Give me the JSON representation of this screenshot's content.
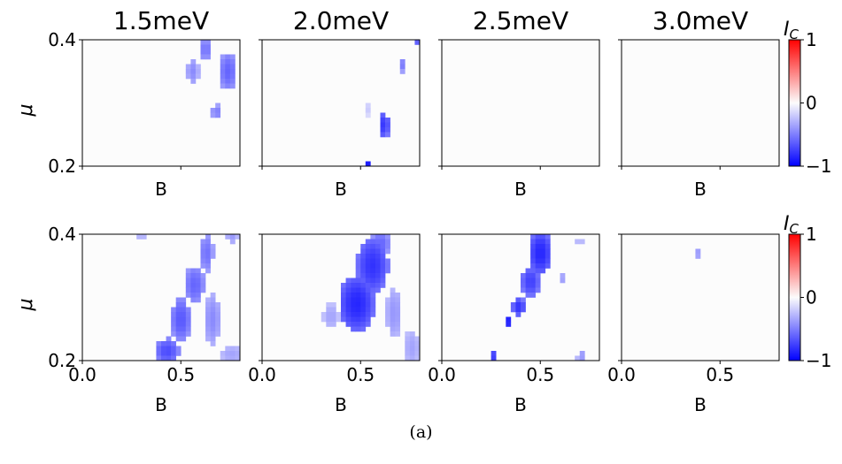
{
  "caption": "(a)",
  "colormap": {
    "low": "#0000ff",
    "mid": "#fcfcfc",
    "high": "#ff0000"
  },
  "chart_data": [
    {
      "type": "heatmap",
      "title": "1.5meV",
      "xlabel": "B",
      "ylabel": "μ",
      "xlim": [
        0.0,
        0.8
      ],
      "ylim": [
        0.2,
        0.4
      ],
      "xticks": [],
      "yticks": [
        "0.2",
        "0.4"
      ],
      "clim": [
        -1,
        1
      ],
      "blobs": [
        {
          "b": 0.625,
          "mu": 0.385,
          "rb": 0.03,
          "rmu": 0.018,
          "v": -0.55
        },
        {
          "b": 0.56,
          "mu": 0.35,
          "rb": 0.03,
          "rmu": 0.02,
          "v": -0.45
        },
        {
          "b": 0.74,
          "mu": 0.35,
          "rb": 0.045,
          "rmu": 0.03,
          "v": -0.6
        },
        {
          "b": 0.68,
          "mu": 0.286,
          "rb": 0.025,
          "rmu": 0.012,
          "v": -0.5
        }
      ]
    },
    {
      "type": "heatmap",
      "title": "2.0meV",
      "xlabel": "B",
      "ylabel": "",
      "xlim": [
        0.0,
        0.8
      ],
      "ylim": [
        0.2,
        0.4
      ],
      "xticks": [],
      "yticks": [],
      "clim": [
        -1,
        1
      ],
      "blobs": [
        {
          "b": 0.795,
          "mu": 0.398,
          "rb": 0.01,
          "rmu": 0.006,
          "v": -0.8
        },
        {
          "b": 0.72,
          "mu": 0.36,
          "rb": 0.015,
          "rmu": 0.012,
          "v": -0.55
        },
        {
          "b": 0.62,
          "mu": 0.265,
          "rb": 0.025,
          "rmu": 0.022,
          "v": -0.8
        },
        {
          "b": 0.535,
          "mu": 0.29,
          "rb": 0.012,
          "rmu": 0.01,
          "v": -0.2
        },
        {
          "b": 0.535,
          "mu": 0.203,
          "rb": 0.012,
          "rmu": 0.006,
          "v": -0.9
        }
      ]
    },
    {
      "type": "heatmap",
      "title": "2.5meV",
      "xlabel": "B",
      "ylabel": "",
      "xlim": [
        0.0,
        0.8
      ],
      "ylim": [
        0.2,
        0.4
      ],
      "xticks": [],
      "yticks": [],
      "clim": [
        -1,
        1
      ],
      "blobs": []
    },
    {
      "type": "heatmap",
      "title": "3.0meV",
      "xlabel": "B",
      "ylabel": "",
      "xlim": [
        0.0,
        0.8
      ],
      "ylim": [
        0.2,
        0.4
      ],
      "xticks": [],
      "yticks": [],
      "clim": [
        -1,
        1
      ],
      "blobs": []
    },
    {
      "type": "heatmap",
      "title": "",
      "xlabel": "B",
      "ylabel": "μ",
      "xlim": [
        0.0,
        0.8
      ],
      "ylim": [
        0.2,
        0.4
      ],
      "xticks": [
        "0.0",
        "0.5"
      ],
      "yticks": [
        "0.2",
        "0.4"
      ],
      "clim": [
        -1,
        1
      ],
      "blobs": [
        {
          "b": 0.43,
          "mu": 0.215,
          "rb": 0.06,
          "rmu": 0.02,
          "v": -0.7
        },
        {
          "b": 0.5,
          "mu": 0.265,
          "rb": 0.05,
          "rmu": 0.035,
          "v": -0.65
        },
        {
          "b": 0.57,
          "mu": 0.32,
          "rb": 0.05,
          "rmu": 0.03,
          "v": -0.6
        },
        {
          "b": 0.63,
          "mu": 0.37,
          "rb": 0.035,
          "rmu": 0.03,
          "v": -0.55
        },
        {
          "b": 0.66,
          "mu": 0.265,
          "rb": 0.04,
          "rmu": 0.04,
          "v": -0.45
        },
        {
          "b": 0.76,
          "mu": 0.4,
          "rb": 0.03,
          "rmu": 0.015,
          "v": -0.4
        },
        {
          "b": 0.76,
          "mu": 0.21,
          "rb": 0.06,
          "rmu": 0.015,
          "v": -0.35
        },
        {
          "b": 0.3,
          "mu": 0.398,
          "rb": 0.03,
          "rmu": 0.006,
          "v": -0.3
        }
      ]
    },
    {
      "type": "heatmap",
      "title": "",
      "xlabel": "B",
      "ylabel": "",
      "xlim": [
        0.0,
        0.8
      ],
      "ylim": [
        0.2,
        0.4
      ],
      "xticks": [
        "0.0",
        "0.5"
      ],
      "yticks": [],
      "clim": [
        -1,
        1
      ],
      "blobs": [
        {
          "b": 0.48,
          "mu": 0.29,
          "rb": 0.09,
          "rmu": 0.045,
          "v": -0.85
        },
        {
          "b": 0.56,
          "mu": 0.35,
          "rb": 0.08,
          "rmu": 0.045,
          "v": -0.8
        },
        {
          "b": 0.6,
          "mu": 0.385,
          "rb": 0.05,
          "rmu": 0.02,
          "v": -0.6
        },
        {
          "b": 0.67,
          "mu": 0.275,
          "rb": 0.04,
          "rmu": 0.04,
          "v": -0.4
        },
        {
          "b": 0.76,
          "mu": 0.22,
          "rb": 0.04,
          "rmu": 0.03,
          "v": -0.35
        },
        {
          "b": 0.35,
          "mu": 0.27,
          "rb": 0.04,
          "rmu": 0.02,
          "v": -0.35
        }
      ]
    },
    {
      "type": "heatmap",
      "title": "",
      "xlabel": "B",
      "ylabel": "",
      "xlim": [
        0.0,
        0.8
      ],
      "ylim": [
        0.2,
        0.4
      ],
      "xticks": [
        "0.0",
        "0.5"
      ],
      "yticks": [],
      "clim": [
        -1,
        1
      ],
      "blobs": [
        {
          "b": 0.5,
          "mu": 0.37,
          "rb": 0.06,
          "rmu": 0.035,
          "v": -0.85
        },
        {
          "b": 0.45,
          "mu": 0.325,
          "rb": 0.05,
          "rmu": 0.025,
          "v": -0.75
        },
        {
          "b": 0.39,
          "mu": 0.285,
          "rb": 0.035,
          "rmu": 0.015,
          "v": -0.8
        },
        {
          "b": 0.34,
          "mu": 0.262,
          "rb": 0.015,
          "rmu": 0.01,
          "v": -0.9
        },
        {
          "b": 0.3,
          "mu": 0.245,
          "rb": 0.01,
          "rmu": 0.006,
          "v": -1.0
        },
        {
          "b": 0.27,
          "mu": 0.207,
          "rb": 0.012,
          "rmu": 0.01,
          "v": -0.9
        },
        {
          "b": 0.71,
          "mu": 0.207,
          "rb": 0.025,
          "rmu": 0.01,
          "v": -0.4
        },
        {
          "b": 0.62,
          "mu": 0.33,
          "rb": 0.015,
          "rmu": 0.01,
          "v": -0.4
        },
        {
          "b": 0.7,
          "mu": 0.39,
          "rb": 0.015,
          "rmu": 0.01,
          "v": -0.35
        }
      ]
    },
    {
      "type": "heatmap",
      "title": "",
      "xlabel": "B",
      "ylabel": "",
      "xlim": [
        0.0,
        0.8
      ],
      "ylim": [
        0.2,
        0.4
      ],
      "xticks": [
        "0.0",
        "0.5"
      ],
      "yticks": [],
      "clim": [
        -1,
        1
      ],
      "blobs": [
        {
          "b": 0.38,
          "mu": 0.37,
          "rb": 0.012,
          "rmu": 0.01,
          "v": -0.45
        }
      ]
    }
  ],
  "colorbars": [
    {
      "label": "I",
      "sub": "C",
      "ticks": [
        "1",
        "0",
        "−1"
      ]
    },
    {
      "label": "I",
      "sub": "C",
      "ticks": [
        "1",
        "0",
        "−1"
      ]
    }
  ]
}
